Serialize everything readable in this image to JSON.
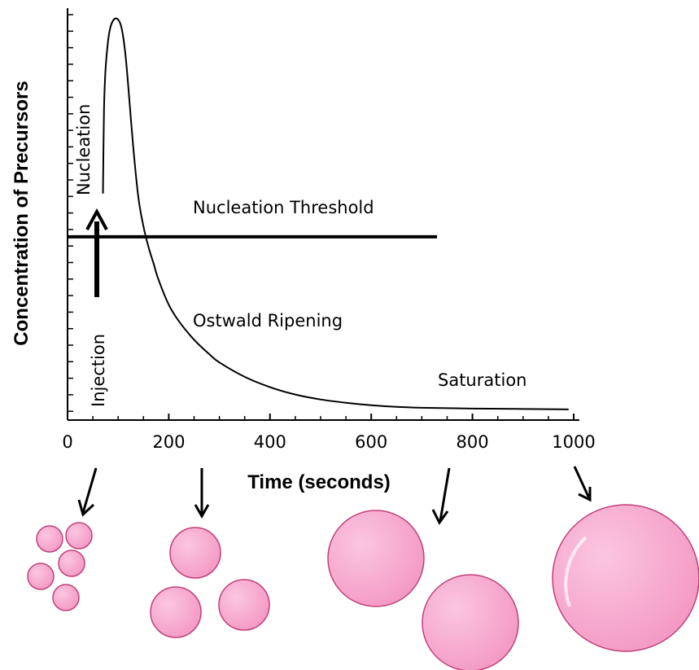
{
  "chart_data": {
    "type": "line",
    "xlabel": "Time (seconds)",
    "ylabel": "Concentration of Precursors",
    "xlim": [
      0,
      1000
    ],
    "x_ticks": [
      "0",
      "200",
      "400",
      "600",
      "800",
      "1000"
    ],
    "y_tick_labels": "none",
    "grid": false,
    "series": [
      {
        "x": [
          70,
          72,
          75,
          80,
          85,
          90,
          95,
          100,
          105,
          110,
          115,
          120,
          130,
          140,
          150,
          160,
          170,
          180,
          200,
          220,
          250,
          280,
          300,
          350,
          400,
          450,
          500,
          550,
          600,
          650,
          700,
          800,
          900,
          990
        ],
        "y": [
          0.55,
          0.75,
          0.85,
          0.92,
          0.955,
          0.97,
          0.975,
          0.972,
          0.96,
          0.93,
          0.88,
          0.81,
          0.66,
          0.54,
          0.47,
          0.42,
          0.38,
          0.34,
          0.28,
          0.24,
          0.195,
          0.16,
          0.14,
          0.105,
          0.08,
          0.062,
          0.05,
          0.042,
          0.036,
          0.032,
          0.03,
          0.028,
          0.027,
          0.026
        ]
      }
    ],
    "threshold": {
      "label": "Nucleation Threshold",
      "y": 0.445,
      "x_start": 0,
      "x_end": 730
    },
    "annotations": {
      "nucleation": "Nucleation",
      "injection": "Injection",
      "ostwald": "Ostwald Ripening",
      "saturation": "Saturation"
    }
  },
  "colors": {
    "particle_fill": "#f7a8cf",
    "particle_stroke": "#c0407a",
    "line": "#000000"
  }
}
